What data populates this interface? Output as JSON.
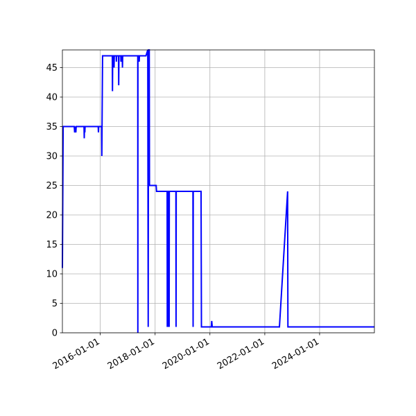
{
  "chart_data": {
    "type": "line",
    "title": "",
    "xlabel": "",
    "ylabel": "",
    "x_axis_type": "date",
    "xlim": [
      "2014-08-15",
      "2025-12-31"
    ],
    "ylim": [
      0,
      48
    ],
    "grid": true,
    "legend": "none",
    "colors": {
      "series": "#0000ff",
      "grid": "#b0b0b0",
      "axes": "#000000"
    },
    "x_ticks": [
      "2016-01-01",
      "2018-01-01",
      "2020-01-01",
      "2022-01-01",
      "2024-01-01"
    ],
    "y_ticks": [
      0,
      5,
      10,
      15,
      20,
      25,
      30,
      35,
      40,
      45
    ],
    "series": [
      {
        "points": [
          [
            "2014-08-15",
            11
          ],
          [
            "2014-08-25",
            35
          ],
          [
            "2015-01-20",
            35
          ],
          [
            "2015-01-25",
            34
          ],
          [
            "2015-02-05",
            35
          ],
          [
            "2015-02-10",
            34
          ],
          [
            "2015-02-15",
            35
          ],
          [
            "2015-05-30",
            35
          ],
          [
            "2015-06-02",
            33
          ],
          [
            "2015-06-05",
            35
          ],
          [
            "2015-06-10",
            34
          ],
          [
            "2015-06-13",
            35
          ],
          [
            "2015-12-05",
            35
          ],
          [
            "2015-12-08",
            34
          ],
          [
            "2015-12-11",
            35
          ],
          [
            "2016-01-20",
            35
          ],
          [
            "2016-01-22",
            30
          ],
          [
            "2016-02-01",
            47
          ],
          [
            "2016-06-10",
            47
          ],
          [
            "2016-06-12",
            41
          ],
          [
            "2016-06-15",
            47
          ],
          [
            "2016-07-01",
            47
          ],
          [
            "2016-07-03",
            45
          ],
          [
            "2016-07-06",
            47
          ],
          [
            "2016-08-01",
            47
          ],
          [
            "2016-08-03",
            46
          ],
          [
            "2016-08-06",
            47
          ],
          [
            "2016-09-01",
            47
          ],
          [
            "2016-09-03",
            42
          ],
          [
            "2016-09-06",
            47
          ],
          [
            "2016-10-01",
            47
          ],
          [
            "2016-10-03",
            46
          ],
          [
            "2016-10-06",
            47
          ],
          [
            "2016-10-20",
            47
          ],
          [
            "2016-10-23",
            45
          ],
          [
            "2016-10-26",
            47
          ],
          [
            "2017-05-15",
            47
          ],
          [
            "2017-05-16",
            0
          ],
          [
            "2017-05-17",
            47
          ],
          [
            "2017-06-01",
            47
          ],
          [
            "2017-06-03",
            46
          ],
          [
            "2017-06-06",
            47
          ],
          [
            "2017-09-01",
            47
          ],
          [
            "2017-09-25",
            48
          ],
          [
            "2017-10-01",
            1
          ],
          [
            "2017-10-05",
            48
          ],
          [
            "2017-10-15",
            48
          ],
          [
            "2017-10-18",
            25
          ],
          [
            "2018-01-15",
            25
          ],
          [
            "2018-01-20",
            24
          ],
          [
            "2018-05-01",
            24
          ],
          [
            "2018-06-10",
            24
          ],
          [
            "2018-06-12",
            1
          ],
          [
            "2018-06-14",
            24
          ],
          [
            "2018-06-24",
            24
          ],
          [
            "2018-06-26",
            1
          ],
          [
            "2018-06-28",
            24
          ],
          [
            "2018-07-05",
            24
          ],
          [
            "2018-07-07",
            1
          ],
          [
            "2018-07-09",
            24
          ],
          [
            "2018-10-05",
            24
          ],
          [
            "2018-10-07",
            1
          ],
          [
            "2018-10-09",
            24
          ],
          [
            "2019-05-20",
            24
          ],
          [
            "2019-05-22",
            1
          ],
          [
            "2019-05-24",
            24
          ],
          [
            "2019-09-05",
            24
          ],
          [
            "2019-09-10",
            1
          ],
          [
            "2020-01-20",
            1
          ],
          [
            "2020-01-25",
            2
          ],
          [
            "2020-02-01",
            1
          ],
          [
            "2022-07-15",
            1
          ],
          [
            "2022-11-01",
            24
          ],
          [
            "2022-11-05",
            1
          ],
          [
            "2025-12-31",
            1
          ]
        ]
      }
    ]
  }
}
